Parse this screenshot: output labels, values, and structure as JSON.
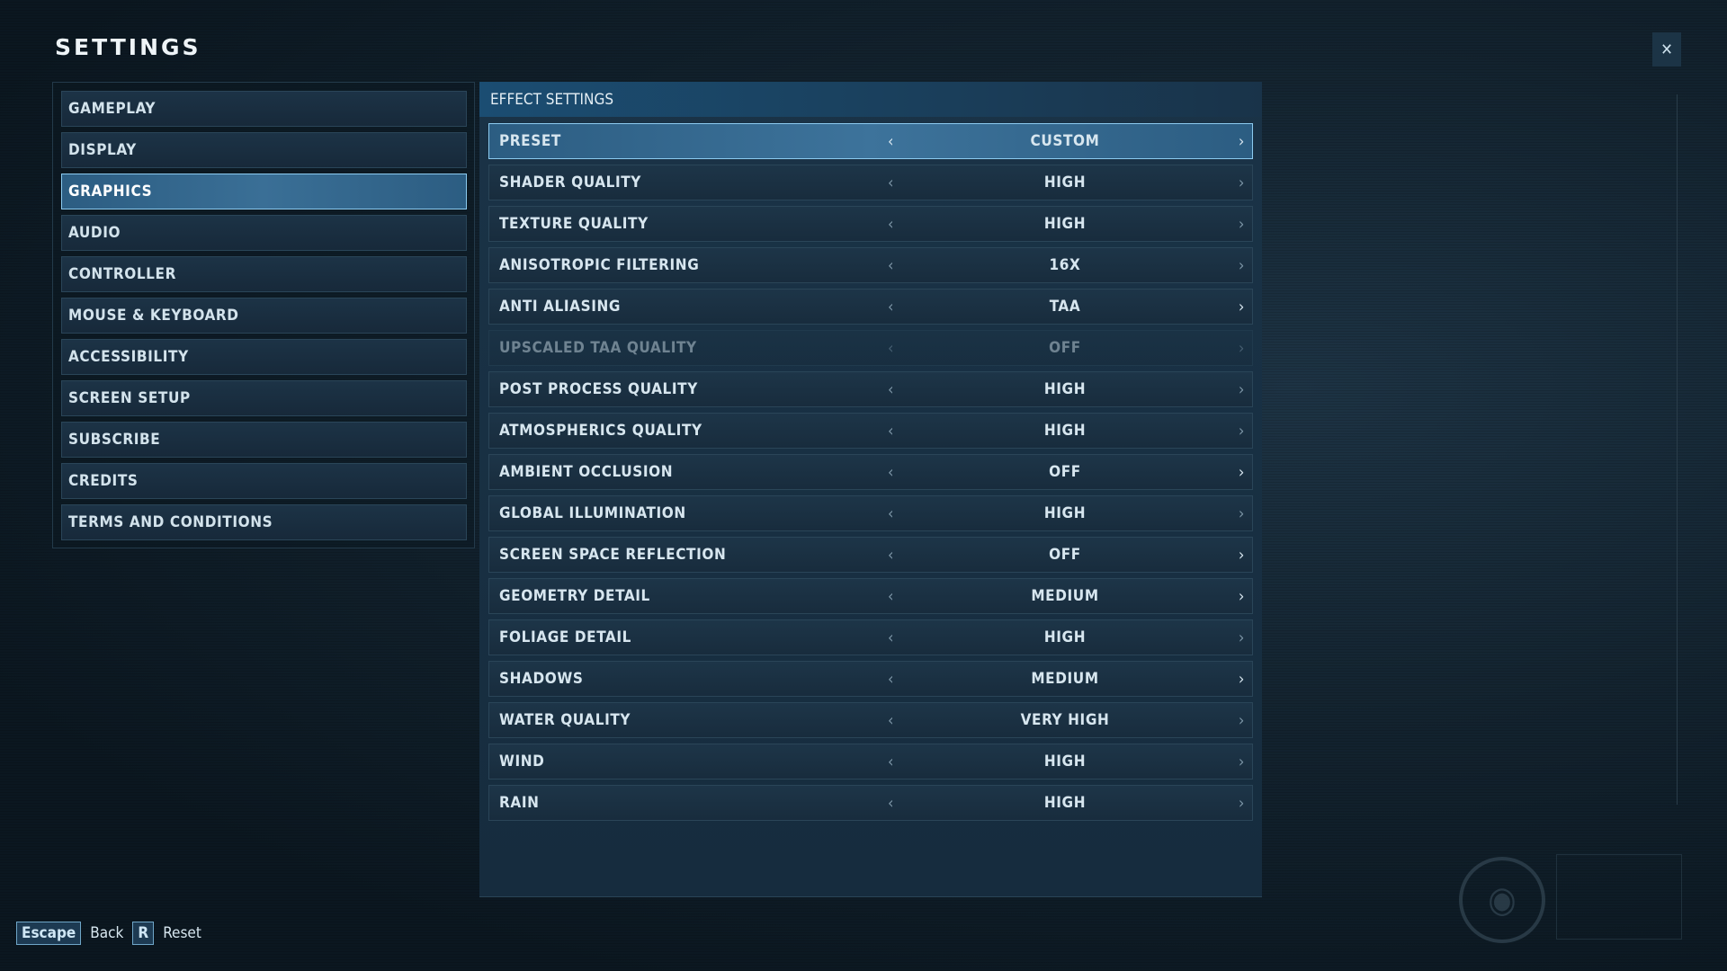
{
  "header": {
    "title": "SETTINGS",
    "close_icon": "collapse-arrows-icon"
  },
  "nav": {
    "items": [
      {
        "label": "GAMEPLAY",
        "active": false
      },
      {
        "label": "DISPLAY",
        "active": false
      },
      {
        "label": "GRAPHICS",
        "active": true
      },
      {
        "label": "AUDIO",
        "active": false
      },
      {
        "label": "CONTROLLER",
        "active": false
      },
      {
        "label": "MOUSE & KEYBOARD",
        "active": false
      },
      {
        "label": "ACCESSIBILITY",
        "active": false
      },
      {
        "label": "SCREEN SETUP",
        "active": false
      },
      {
        "label": "SUBSCRIBE",
        "active": false
      },
      {
        "label": "CREDITS",
        "active": false
      },
      {
        "label": "TERMS AND CONDITIONS",
        "active": false
      }
    ]
  },
  "panel": {
    "title": "EFFECT SETTINGS",
    "left_arrow": "‹",
    "right_arrow": "›",
    "rows": [
      {
        "label": "PRESET",
        "value": "CUSTOM",
        "selected": true,
        "disabled": false,
        "right_enabled": true
      },
      {
        "label": "SHADER QUALITY",
        "value": "HIGH",
        "selected": false,
        "disabled": false,
        "right_enabled": false
      },
      {
        "label": "TEXTURE QUALITY",
        "value": "HIGH",
        "selected": false,
        "disabled": false,
        "right_enabled": false
      },
      {
        "label": "ANISOTROPIC FILTERING",
        "value": "16X",
        "selected": false,
        "disabled": false,
        "right_enabled": false
      },
      {
        "label": "ANTI ALIASING",
        "value": "TAA",
        "selected": false,
        "disabled": false,
        "right_enabled": true
      },
      {
        "label": "UPSCALED TAA QUALITY",
        "value": "OFF",
        "selected": false,
        "disabled": true,
        "right_enabled": false
      },
      {
        "label": "POST PROCESS QUALITY",
        "value": "HIGH",
        "selected": false,
        "disabled": false,
        "right_enabled": false
      },
      {
        "label": "ATMOSPHERICS QUALITY",
        "value": "HIGH",
        "selected": false,
        "disabled": false,
        "right_enabled": false
      },
      {
        "label": "AMBIENT OCCLUSION",
        "value": "OFF",
        "selected": false,
        "disabled": false,
        "right_enabled": true
      },
      {
        "label": "GLOBAL ILLUMINATION",
        "value": "HIGH",
        "selected": false,
        "disabled": false,
        "right_enabled": false
      },
      {
        "label": "SCREEN SPACE REFLECTION",
        "value": "OFF",
        "selected": false,
        "disabled": false,
        "right_enabled": true
      },
      {
        "label": "GEOMETRY DETAIL",
        "value": "MEDIUM",
        "selected": false,
        "disabled": false,
        "right_enabled": true
      },
      {
        "label": "FOLIAGE DETAIL",
        "value": "HIGH",
        "selected": false,
        "disabled": false,
        "right_enabled": false
      },
      {
        "label": "SHADOWS",
        "value": "MEDIUM",
        "selected": false,
        "disabled": false,
        "right_enabled": true
      },
      {
        "label": "WATER QUALITY",
        "value": "VERY HIGH",
        "selected": false,
        "disabled": false,
        "right_enabled": false
      },
      {
        "label": "WIND",
        "value": "HIGH",
        "selected": false,
        "disabled": false,
        "right_enabled": false
      },
      {
        "label": "RAIN",
        "value": "HIGH",
        "selected": false,
        "disabled": false,
        "right_enabled": false
      }
    ]
  },
  "footer": {
    "back_key": "Escape",
    "back_label": "Back",
    "reset_key": "R",
    "reset_label": "Reset"
  },
  "colors": {
    "accent": "#8ccbf0",
    "selected_bg": "#3a6f96",
    "panel_bg": "#182c3d"
  }
}
